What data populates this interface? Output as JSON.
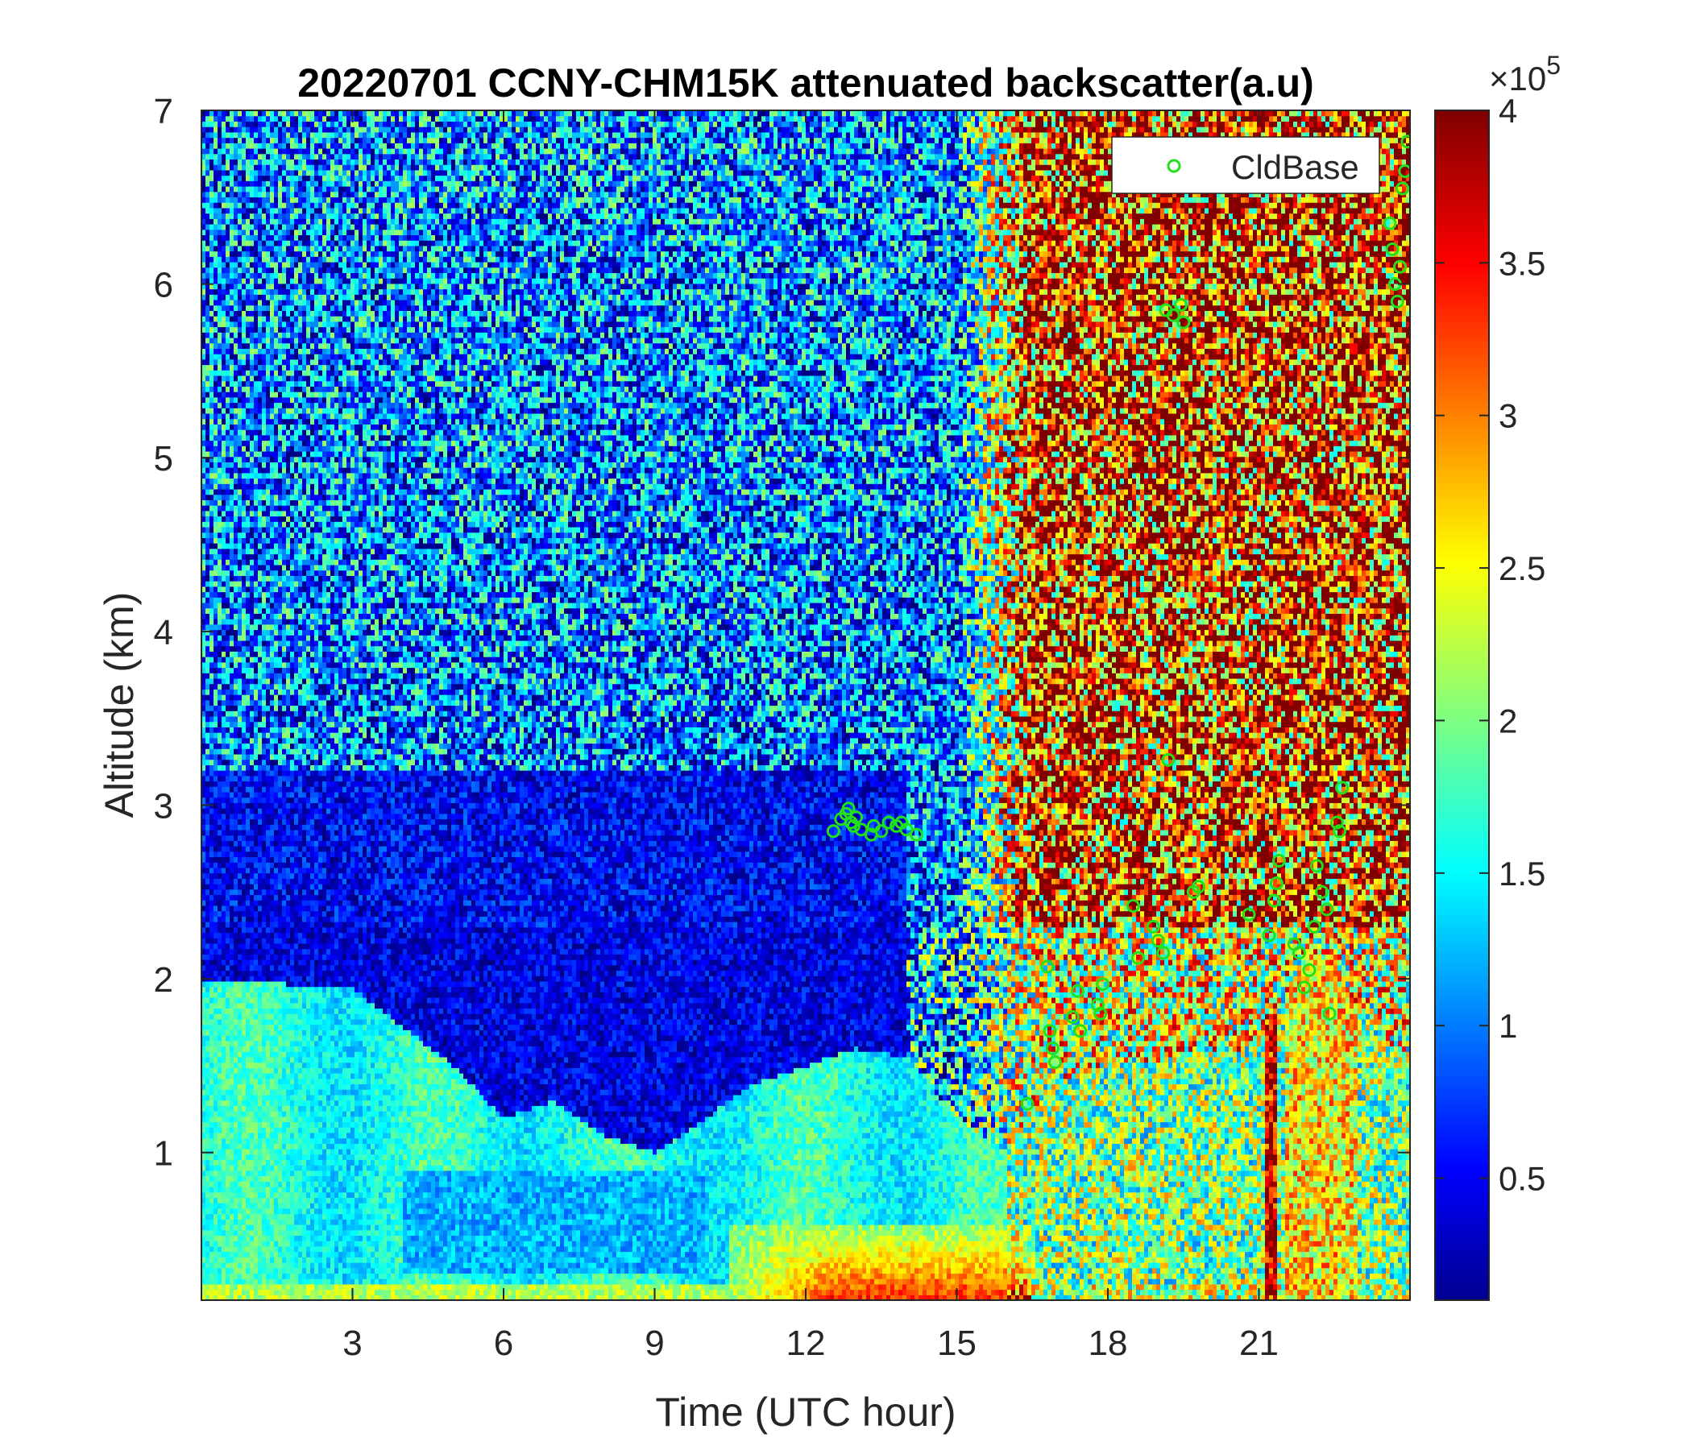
{
  "chart_data": {
    "type": "heatmap",
    "title": "20220701 CCNY-CHM15K attenuated backscatter(a.u)",
    "xlabel": "Time (UTC hour)",
    "ylabel": "Altitude (km)",
    "xlim": [
      0,
      24
    ],
    "ylim": [
      0.15,
      7
    ],
    "xticks": [
      3,
      6,
      9,
      12,
      15,
      18,
      21
    ],
    "yticks": [
      1,
      2,
      3,
      4,
      5,
      6,
      7
    ],
    "colorbar": {
      "colormap": "jet",
      "range": [
        0.1,
        4
      ],
      "ticks": [
        0.5,
        1,
        1.5,
        2,
        2.5,
        3,
        3.5,
        4
      ],
      "tick_labels": [
        "0.5",
        "1",
        "1.5",
        "2",
        "2.5",
        "3",
        "3.5",
        "4"
      ],
      "multiplier_base": "×10",
      "multiplier_exponent": "5"
    },
    "legend": {
      "location": "top-right",
      "entries": [
        "CldBase"
      ]
    },
    "series": [
      {
        "name": "CldBase",
        "marker": "circle",
        "color": "#22e01a",
        "points": [
          [
            12.55,
            2.85
          ],
          [
            12.7,
            2.92
          ],
          [
            12.8,
            2.95
          ],
          [
            12.85,
            2.98
          ],
          [
            12.9,
            2.9
          ],
          [
            12.95,
            2.88
          ],
          [
            13.0,
            2.93
          ],
          [
            13.1,
            2.86
          ],
          [
            13.3,
            2.83
          ],
          [
            13.35,
            2.88
          ],
          [
            13.5,
            2.85
          ],
          [
            13.65,
            2.9
          ],
          [
            13.8,
            2.88
          ],
          [
            13.9,
            2.9
          ],
          [
            14.0,
            2.86
          ],
          [
            14.2,
            2.83
          ],
          [
            16.4,
            1.28
          ],
          [
            16.8,
            2.07
          ],
          [
            16.85,
            1.7
          ],
          [
            16.9,
            1.6
          ],
          [
            16.95,
            1.52
          ],
          [
            17.3,
            1.78
          ],
          [
            17.4,
            1.93
          ],
          [
            17.45,
            1.7
          ],
          [
            17.8,
            1.85
          ],
          [
            17.85,
            1.8
          ],
          [
            17.9,
            1.97
          ],
          [
            18.5,
            2.42
          ],
          [
            18.6,
            2.12
          ],
          [
            18.9,
            2.3
          ],
          [
            19.0,
            2.22
          ],
          [
            19.1,
            2.15
          ],
          [
            19.2,
            3.26
          ],
          [
            19.15,
            5.85
          ],
          [
            19.3,
            5.82
          ],
          [
            19.45,
            5.88
          ],
          [
            19.5,
            5.78
          ],
          [
            19.7,
            2.5
          ],
          [
            19.8,
            2.53
          ],
          [
            20.8,
            2.37
          ],
          [
            21.2,
            2.25
          ],
          [
            21.3,
            2.45
          ],
          [
            21.35,
            2.55
          ],
          [
            21.4,
            2.68
          ],
          [
            21.7,
            2.2
          ],
          [
            21.8,
            2.15
          ],
          [
            21.9,
            1.95
          ],
          [
            22.0,
            2.05
          ],
          [
            22.1,
            2.3
          ],
          [
            22.15,
            2.65
          ],
          [
            22.25,
            2.5
          ],
          [
            22.35,
            2.4
          ],
          [
            22.4,
            1.8
          ],
          [
            22.55,
            2.9
          ],
          [
            22.6,
            2.85
          ],
          [
            22.65,
            3.1
          ],
          [
            23.6,
            6.35
          ],
          [
            23.65,
            6.2
          ],
          [
            23.7,
            6.0
          ],
          [
            23.75,
            5.9
          ],
          [
            23.8,
            6.1
          ],
          [
            23.85,
            6.55
          ],
          [
            23.9,
            6.65
          ],
          [
            23.95,
            6.82
          ]
        ]
      }
    ]
  }
}
